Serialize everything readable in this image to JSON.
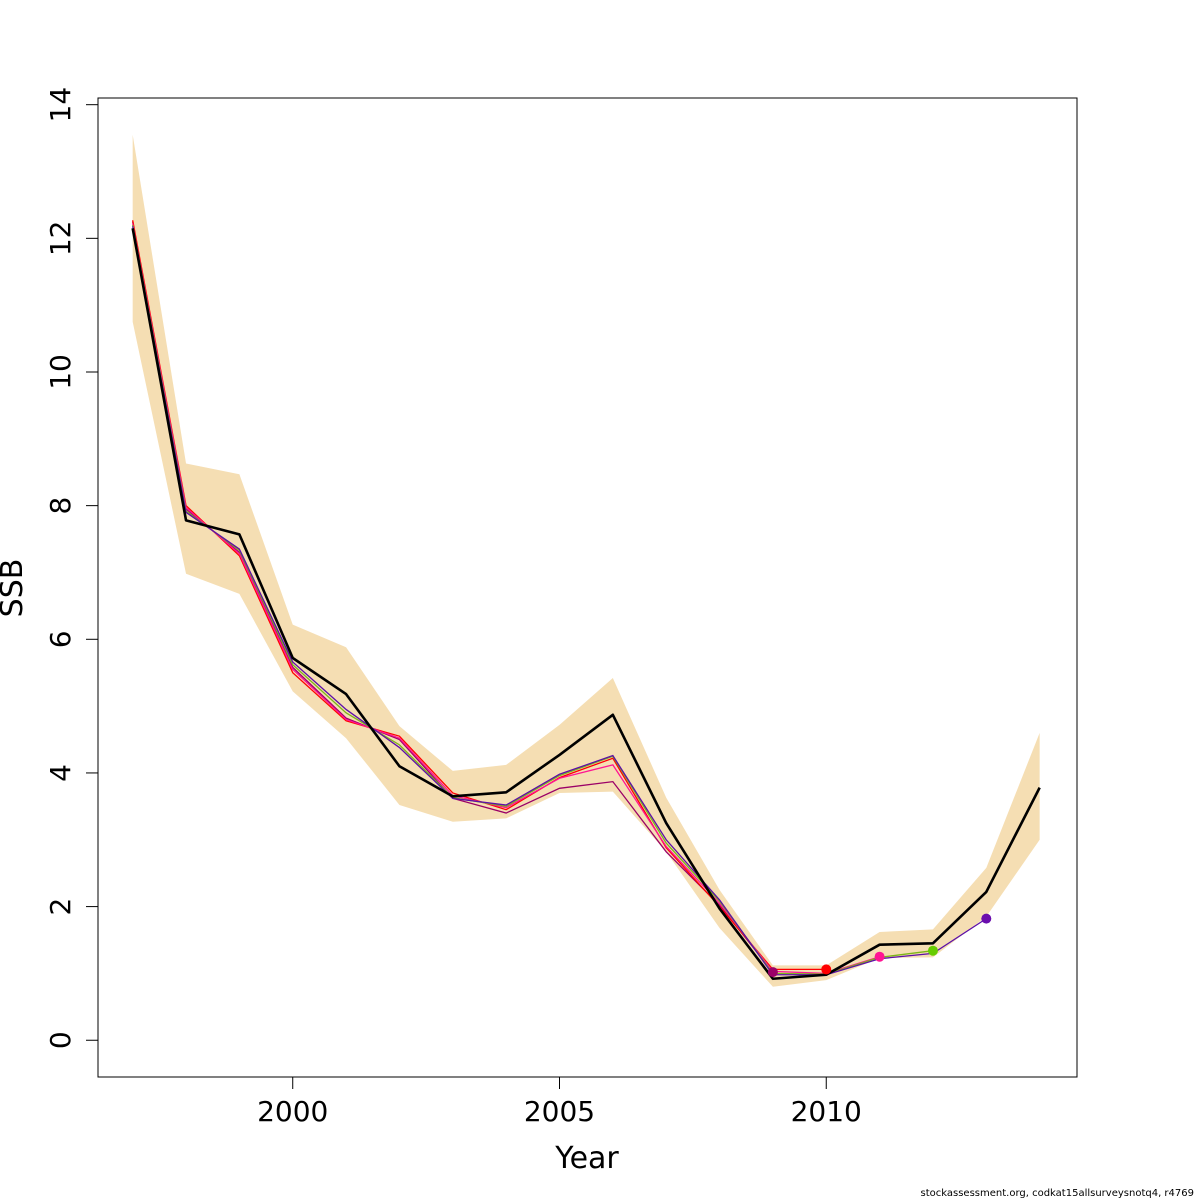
{
  "chart_data": {
    "type": "line",
    "xlabel": "Year",
    "ylabel": "SSB",
    "xlim": [
      1996.35,
      2014.7
    ],
    "ylim": [
      -0.55,
      14.1
    ],
    "x_ticks": [
      2000,
      2005,
      2010
    ],
    "y_ticks": [
      0,
      2,
      4,
      6,
      8,
      10,
      12,
      14
    ],
    "grid": false,
    "legend": "none",
    "confidence_band": {
      "color": "#f5deb3",
      "x": [
        1997,
        1998,
        1999,
        2000,
        2001,
        2002,
        2003,
        2004,
        2005,
        2006,
        2007,
        2008,
        2009,
        2010,
        2011,
        2012,
        2013,
        2014
      ],
      "upper": [
        13.55,
        8.63,
        8.47,
        6.22,
        5.88,
        4.7,
        4.03,
        4.12,
        4.72,
        5.42,
        3.63,
        2.25,
        1.12,
        1.12,
        1.62,
        1.66,
        2.58,
        4.6
      ],
      "lower": [
        10.75,
        6.98,
        6.68,
        5.22,
        4.52,
        3.52,
        3.27,
        3.32,
        3.7,
        3.72,
        2.82,
        1.68,
        0.8,
        0.9,
        1.23,
        1.24,
        1.85,
        3.0
      ]
    },
    "main_series": {
      "color": "#000000",
      "x": [
        1997,
        1998,
        1999,
        2000,
        2001,
        2002,
        2003,
        2004,
        2005,
        2006,
        2007,
        2008,
        2009,
        2010,
        2011,
        2012,
        2013,
        2014
      ],
      "values": [
        12.15,
        7.78,
        7.57,
        5.72,
        5.18,
        4.1,
        3.65,
        3.71,
        4.27,
        4.87,
        3.25,
        1.97,
        0.92,
        0.98,
        1.43,
        1.45,
        2.22,
        3.78
      ]
    },
    "retro_series": [
      {
        "color": "#9b0067",
        "x": [
          1997,
          1998,
          1999,
          2000,
          2001,
          2002,
          2003,
          2004,
          2005,
          2006,
          2007,
          2008,
          2009
        ],
        "values": [
          12.25,
          7.95,
          7.3,
          5.58,
          4.82,
          4.5,
          3.62,
          3.4,
          3.77,
          3.87,
          2.82,
          2.02,
          1.02
        ]
      },
      {
        "color": "#ff0000",
        "x": [
          1997,
          1998,
          1999,
          2000,
          2001,
          2002,
          2003,
          2004,
          2005,
          2006,
          2007,
          2008,
          2009,
          2010
        ],
        "values": [
          12.27,
          8.0,
          7.25,
          5.5,
          4.78,
          4.55,
          3.7,
          3.45,
          3.93,
          4.22,
          2.88,
          2.0,
          1.06,
          1.06
        ]
      },
      {
        "color": "#ff1493",
        "x": [
          1997,
          1998,
          1999,
          2000,
          2001,
          2002,
          2003,
          2004,
          2005,
          2006,
          2007,
          2008,
          2009,
          2010,
          2011
        ],
        "values": [
          12.22,
          7.97,
          7.28,
          5.55,
          4.8,
          4.52,
          3.66,
          3.48,
          3.92,
          4.12,
          2.9,
          2.05,
          1.03,
          1.0,
          1.25
        ]
      },
      {
        "color": "#7cb518",
        "x": [
          1997,
          1998,
          1999,
          2000,
          2001,
          2002,
          2003,
          2004,
          2005,
          2006,
          2007,
          2008,
          2009,
          2010,
          2011,
          2012
        ],
        "values": [
          12.2,
          7.92,
          7.33,
          5.62,
          4.9,
          4.42,
          3.63,
          3.5,
          3.96,
          4.25,
          2.95,
          2.08,
          1.0,
          0.99,
          1.24,
          1.34
        ]
      },
      {
        "color": "#5c0fa8",
        "x": [
          1997,
          1998,
          1999,
          2000,
          2001,
          2002,
          2003,
          2004,
          2005,
          2006,
          2007,
          2008,
          2009,
          2010,
          2011,
          2012,
          2013
        ],
        "values": [
          12.18,
          7.9,
          7.35,
          5.66,
          4.95,
          4.38,
          3.62,
          3.52,
          3.98,
          4.26,
          3.0,
          2.1,
          0.98,
          0.98,
          1.22,
          1.3,
          1.82
        ]
      }
    ],
    "terminal_points": [
      {
        "x": 2009,
        "y": 1.02,
        "color": "#9b0067"
      },
      {
        "x": 2010,
        "y": 1.06,
        "color": "#ff0000"
      },
      {
        "x": 2011,
        "y": 1.25,
        "color": "#ff1493"
      },
      {
        "x": 2012,
        "y": 1.34,
        "color": "#66cc00"
      },
      {
        "x": 2013,
        "y": 1.82,
        "color": "#6a0dad"
      }
    ]
  },
  "footer": {
    "note": "stockassessment.org, codkat15allsurveysnotq4, r4769"
  }
}
